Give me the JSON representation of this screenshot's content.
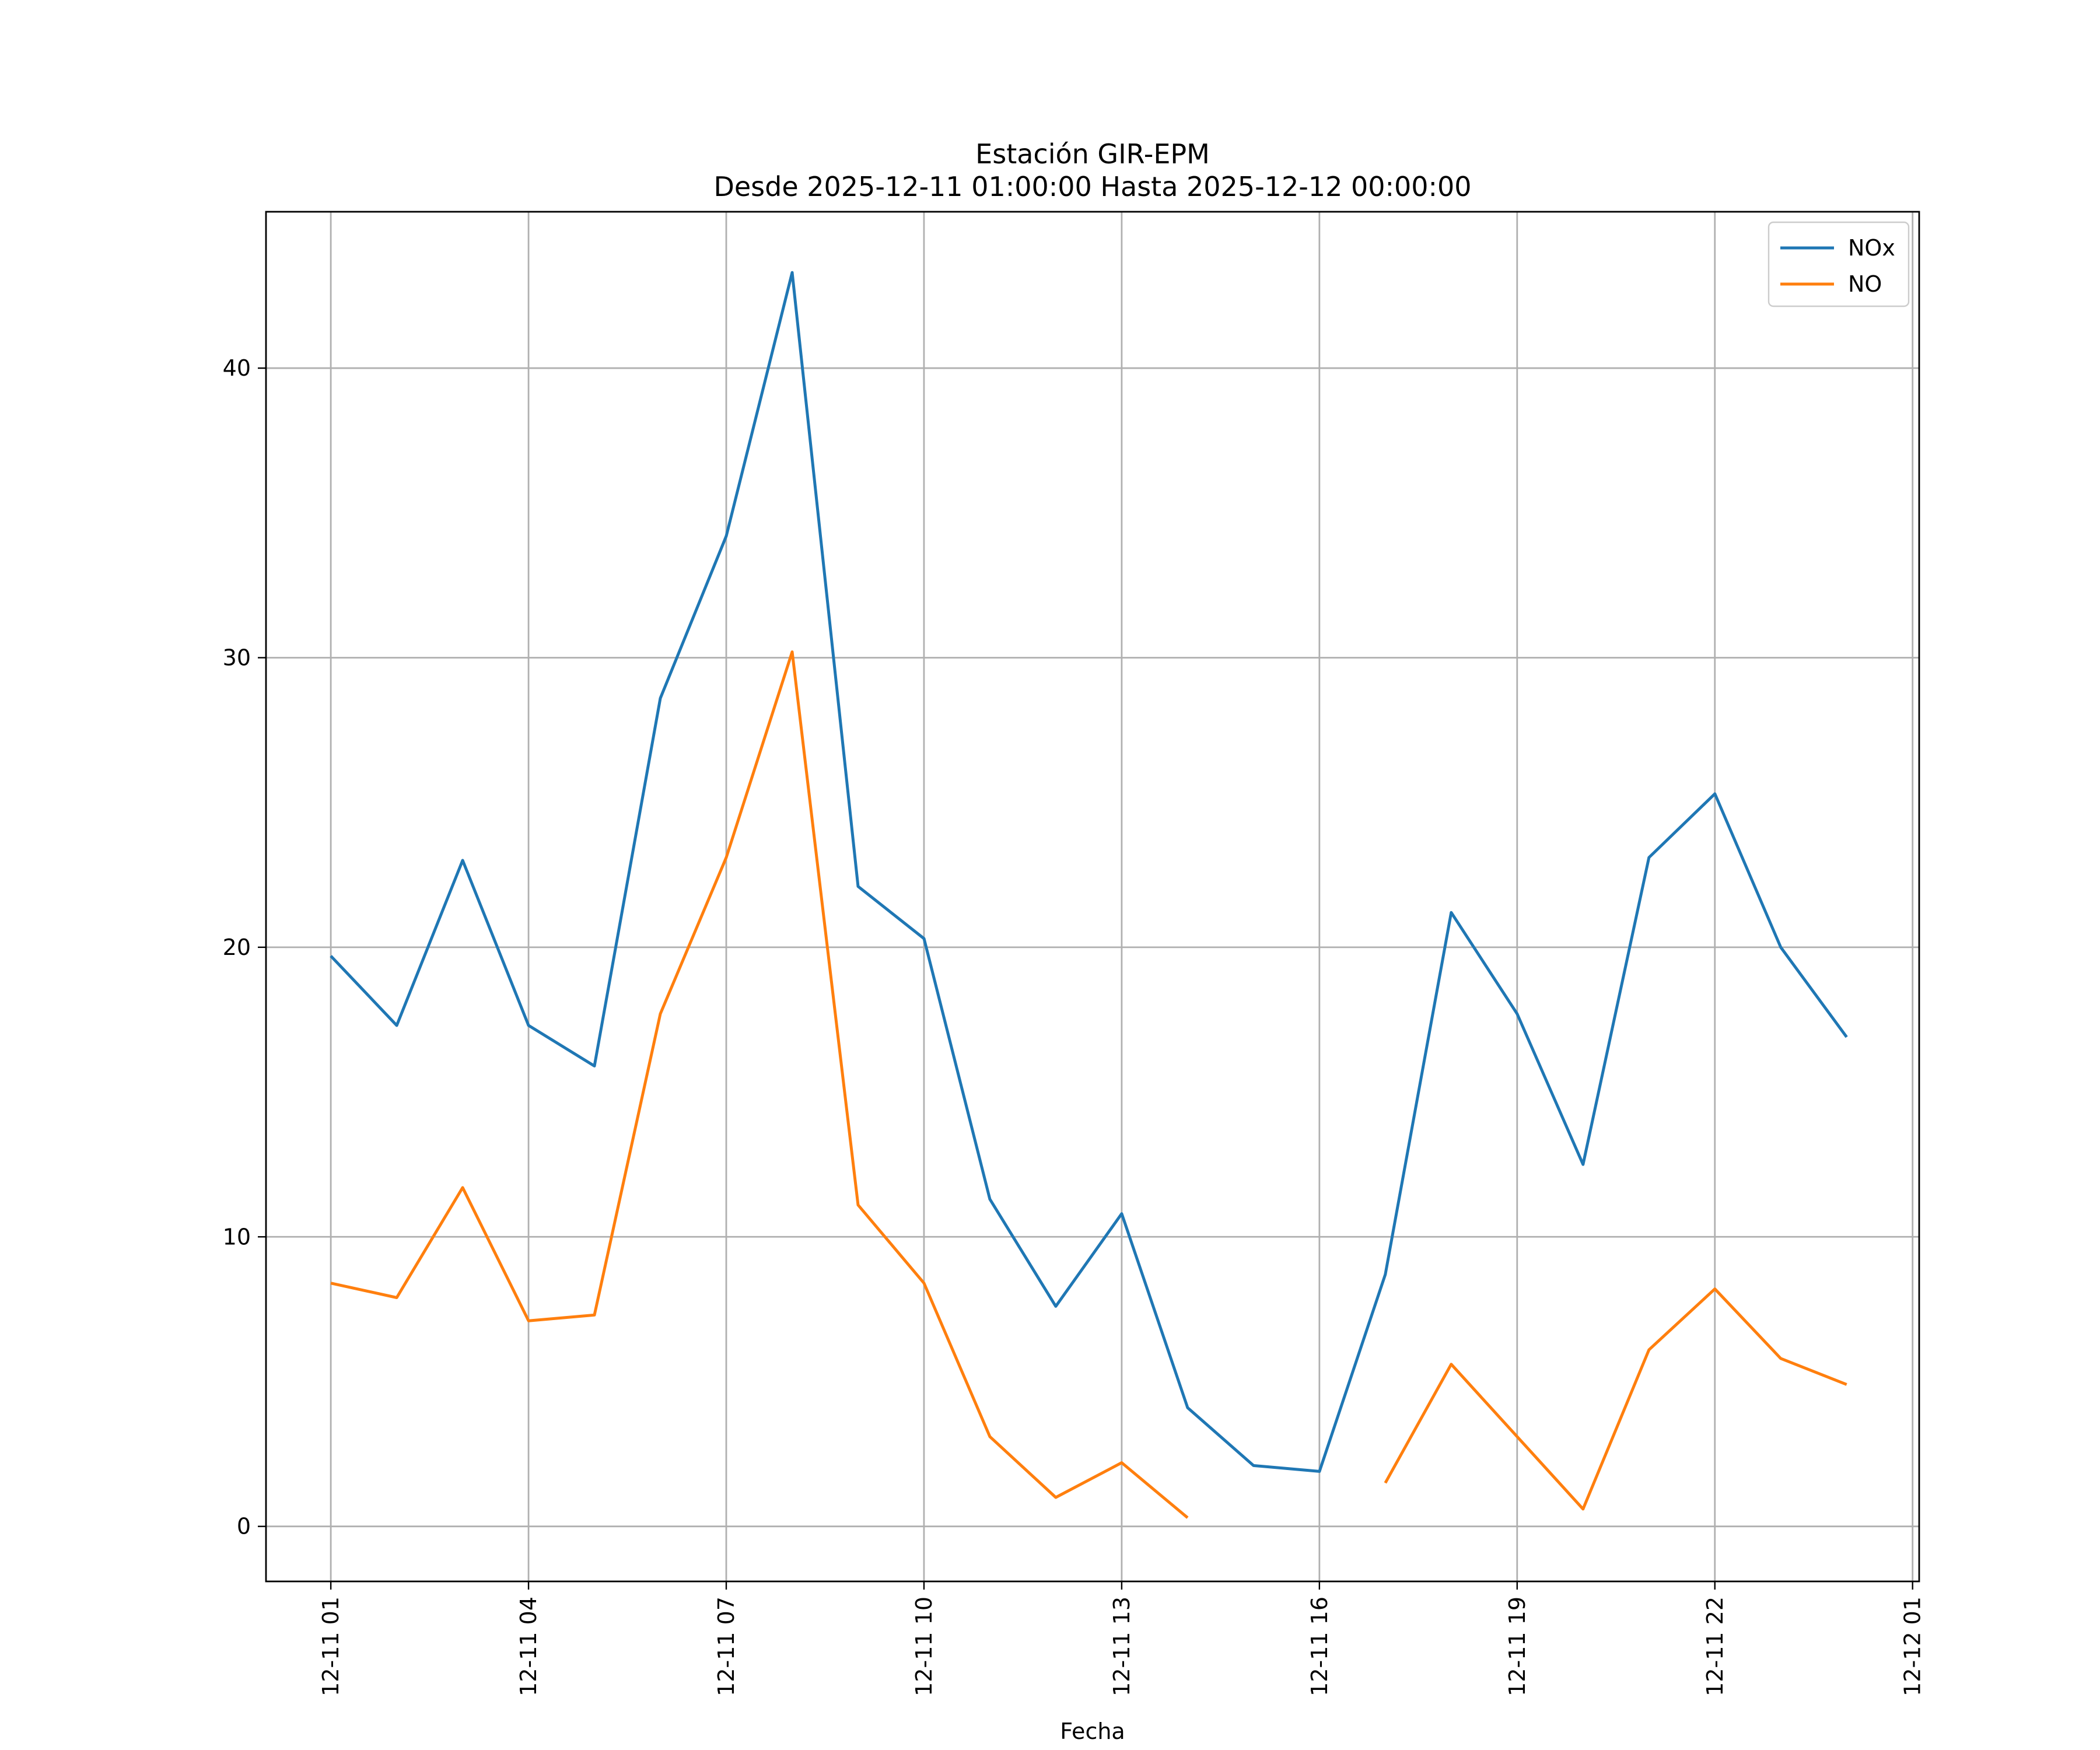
{
  "chart_data": {
    "type": "line",
    "title": "Estación GIR-EPM",
    "subtitle": "Desde 2025-12-11 01:00:00 Hasta 2025-12-12 00:00:00",
    "xlabel": "Fecha",
    "ylabel": "",
    "x": [
      "2025-12-11 01:00",
      "2025-12-11 02:00",
      "2025-12-11 03:00",
      "2025-12-11 04:00",
      "2025-12-11 05:00",
      "2025-12-11 06:00",
      "2025-12-11 07:00",
      "2025-12-11 08:00",
      "2025-12-11 09:00",
      "2025-12-11 10:00",
      "2025-12-11 11:00",
      "2025-12-11 12:00",
      "2025-12-11 13:00",
      "2025-12-11 14:00",
      "2025-12-11 15:00",
      "2025-12-11 16:00",
      "2025-12-11 17:00",
      "2025-12-11 18:00",
      "2025-12-11 19:00",
      "2025-12-11 20:00",
      "2025-12-11 21:00",
      "2025-12-11 22:00",
      "2025-12-11 23:00",
      "2025-12-12 00:00"
    ],
    "series": [
      {
        "name": "NOx",
        "color": "#1f77b4",
        "values": [
          19.7,
          17.3,
          23.0,
          17.3,
          15.9,
          28.6,
          34.2,
          43.3,
          22.1,
          20.3,
          11.3,
          7.6,
          10.8,
          4.1,
          2.1,
          1.9,
          8.7,
          21.2,
          17.7,
          12.5,
          23.1,
          25.3,
          20.0,
          16.9
        ]
      },
      {
        "name": "NO",
        "color": "#ff7f0e",
        "values": [
          8.4,
          7.9,
          11.7,
          7.1,
          7.3,
          17.7,
          23.1,
          30.2,
          11.1,
          8.4,
          3.1,
          1.0,
          2.2,
          0.3,
          null,
          null,
          1.5,
          5.6,
          3.1,
          0.6,
          6.1,
          8.2,
          5.8,
          4.9
        ]
      }
    ],
    "xticks": [
      "12-11 01",
      "12-11 04",
      "12-11 07",
      "12-11 10",
      "12-11 13",
      "12-11 16",
      "12-11 19",
      "12-11 22",
      "12-12 01"
    ],
    "yticks": [
      "0",
      "10",
      "20",
      "30",
      "40"
    ],
    "ylim": [
      -1.9,
      45.4
    ],
    "xlim": [
      "2025-12-11 00:01",
      "2025-12-12 01:06"
    ],
    "grid": true,
    "legend_position": "top-right"
  }
}
